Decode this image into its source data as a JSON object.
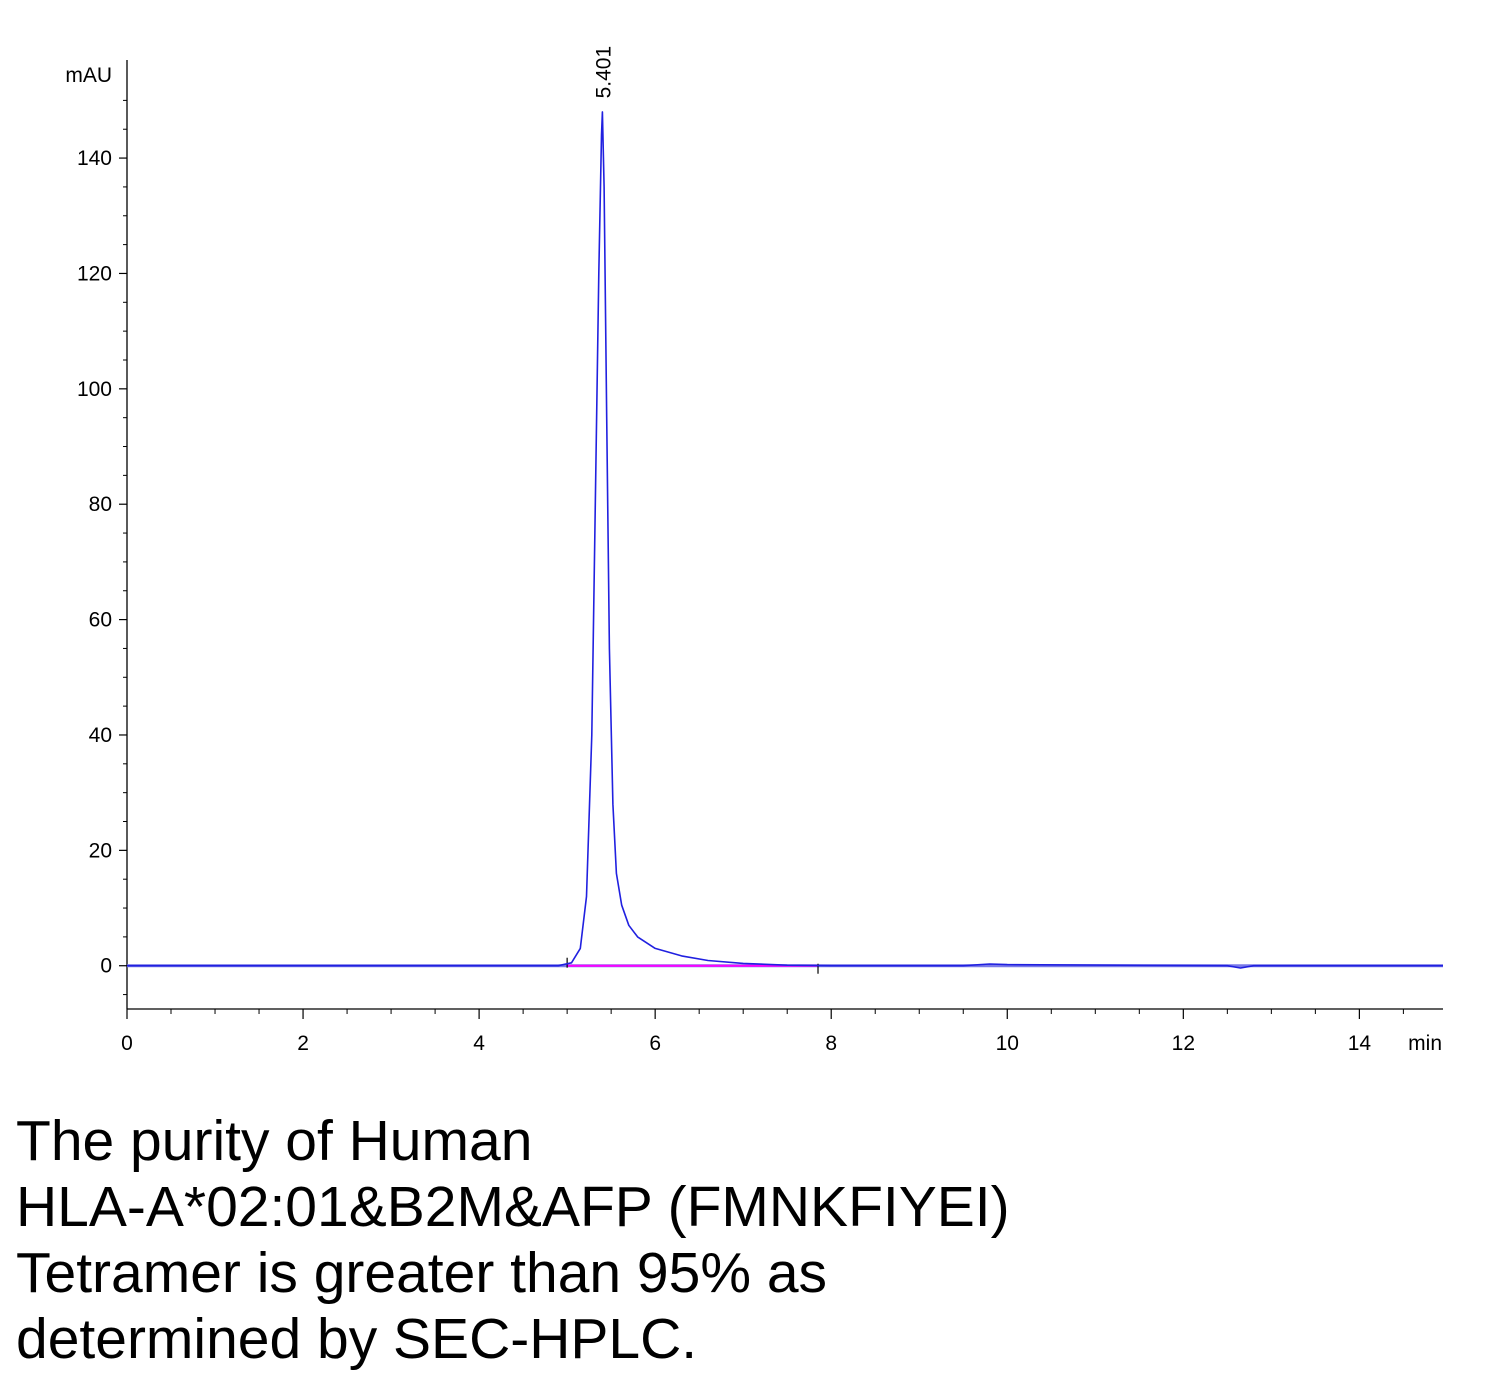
{
  "chart_data": {
    "type": "line",
    "ylabel": "mAU",
    "xlabel": "min",
    "xlim": [
      0,
      14.95
    ],
    "ylim": [
      -7.5,
      157
    ],
    "x_ticks": [
      0,
      2,
      4,
      6,
      8,
      10,
      12,
      14
    ],
    "y_ticks": [
      0,
      20,
      40,
      60,
      80,
      100,
      120,
      140
    ],
    "grid": false,
    "peak_label": "5.401",
    "series": [
      {
        "color": "#2020e0",
        "x": [
          0,
          4.9,
          5.05,
          5.15,
          5.22,
          5.28,
          5.32,
          5.36,
          5.39,
          5.401,
          5.42,
          5.45,
          5.48,
          5.52,
          5.56,
          5.62,
          5.7,
          5.8,
          6.0,
          6.3,
          6.6,
          7.0,
          7.5,
          8.0,
          9.5,
          9.8,
          10.0,
          12.5,
          12.65,
          12.8,
          14.95
        ],
        "y": [
          0,
          0,
          0.5,
          3,
          12,
          40,
          80,
          120,
          144,
          148,
          135,
          95,
          55,
          28,
          16,
          10.5,
          7,
          5,
          3,
          1.7,
          0.9,
          0.4,
          0.1,
          0,
          0,
          0.3,
          0.2,
          0,
          -0.4,
          0,
          0
        ]
      }
    ],
    "baseline": {
      "color": "#ff00ff",
      "x": [
        5.0,
        7.85
      ],
      "y": [
        0,
        0
      ]
    }
  },
  "caption": {
    "lines": [
      "The purity of Human",
      "HLA-A*02:01&B2M&AFP (FMNKFIYEI)",
      "Tetramer is greater than 95% as",
      "determined by SEC-HPLC."
    ]
  }
}
